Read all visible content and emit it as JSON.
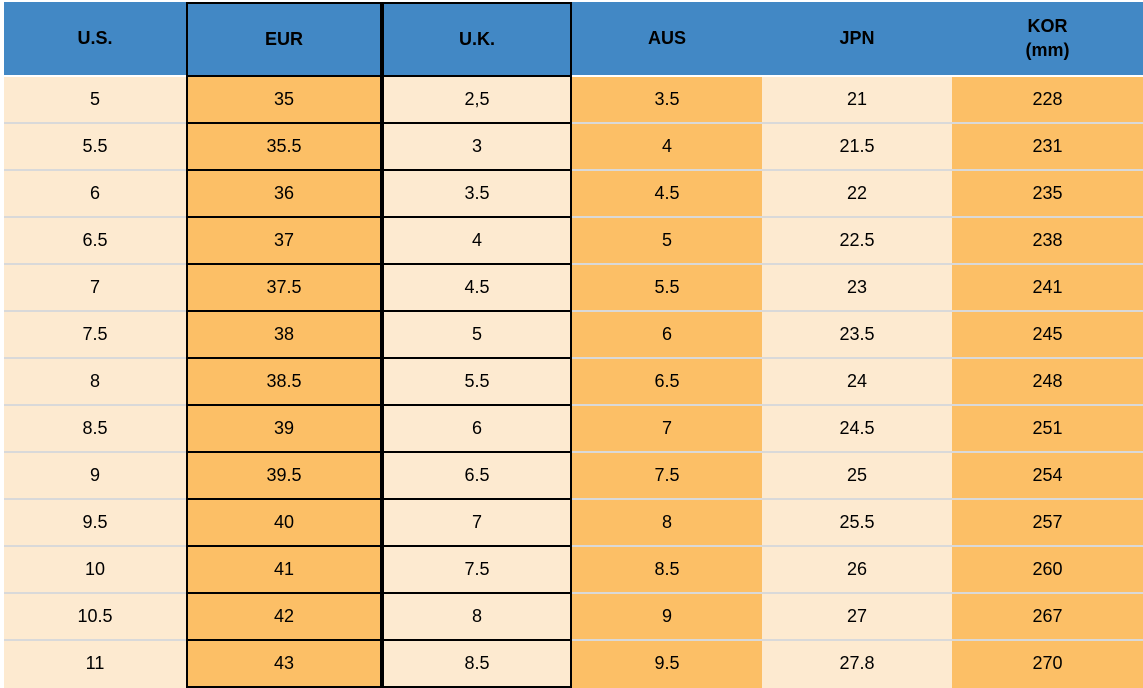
{
  "chart_data": {
    "type": "table",
    "columns": [
      {
        "label": "U.S."
      },
      {
        "label": "EUR"
      },
      {
        "label": "U.K."
      },
      {
        "label": "AUS"
      },
      {
        "label": "JPN"
      },
      {
        "label": "KOR",
        "sublabel": "(mm)"
      }
    ],
    "rows": [
      [
        "5",
        "35",
        "2,5",
        "3.5",
        "21",
        "228"
      ],
      [
        "5.5",
        "35.5",
        "3",
        "4",
        "21.5",
        "231"
      ],
      [
        "6",
        "36",
        "3.5",
        "4.5",
        "22",
        "235"
      ],
      [
        "6.5",
        "37",
        "4",
        "5",
        "22.5",
        "238"
      ],
      [
        "7",
        "37.5",
        "4.5",
        "5.5",
        "23",
        "241"
      ],
      [
        "7.5",
        "38",
        "5",
        "6",
        "23.5",
        "245"
      ],
      [
        "8",
        "38.5",
        "5.5",
        "6.5",
        "24",
        "248"
      ],
      [
        "8.5",
        "39",
        "6",
        "7",
        "24.5",
        "251"
      ],
      [
        "9",
        "39.5",
        "6.5",
        "7.5",
        "25",
        "254"
      ],
      [
        "9.5",
        "40",
        "7",
        "8",
        "25.5",
        "257"
      ],
      [
        "10",
        "41",
        "7.5",
        "8.5",
        "26",
        "260"
      ],
      [
        "10.5",
        "42",
        "8",
        "9",
        "27",
        "267"
      ],
      [
        "11",
        "43",
        "8.5",
        "9.5",
        "27.8",
        "270"
      ]
    ],
    "layout_hints": {
      "boxed_columns": [
        "EUR",
        "U.K."
      ],
      "header_bg": "#4288c5",
      "orange_cell_bg": "#fcbf66",
      "cream_cell_bg": "#fdead0",
      "row_separator_color": "#d9d9d9",
      "box_border_color": "#000000"
    }
  }
}
